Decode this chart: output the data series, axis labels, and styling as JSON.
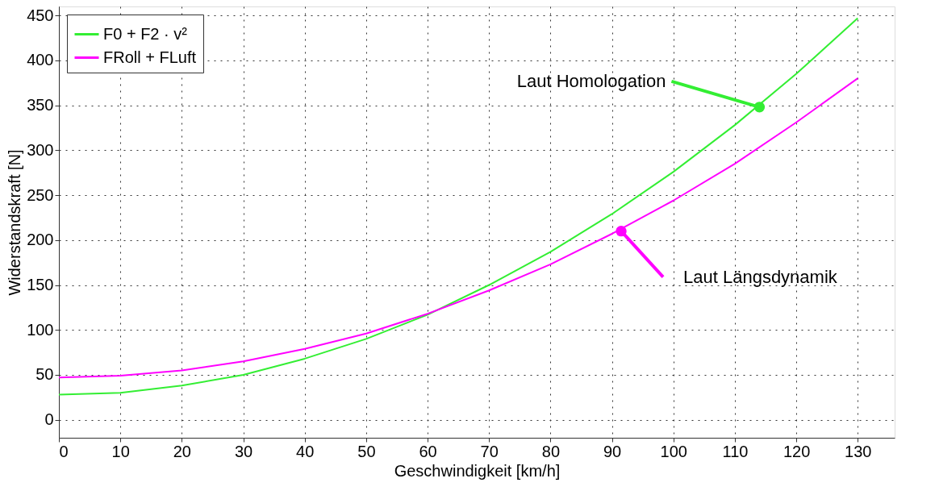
{
  "chart_data": {
    "type": "line",
    "xlabel": "Geschwindigkeit [km/h]",
    "ylabel": "Widerstandskraft [N]",
    "x": [
      0,
      10,
      20,
      30,
      40,
      50,
      60,
      70,
      80,
      90,
      100,
      110,
      120,
      130
    ],
    "series": [
      {
        "name": "F0 + F2 · v²",
        "color": "#33ee33",
        "values": [
          28,
          30,
          38,
          50,
          68,
          90,
          117,
          150,
          187,
          229,
          276,
          328,
          385,
          447
        ]
      },
      {
        "name": "FRoll + FLuft",
        "color": "#ff00ff",
        "values": [
          47,
          49,
          55,
          65,
          79,
          96,
          118,
          144,
          173,
          207,
          244,
          285,
          331,
          380
        ]
      }
    ],
    "annotations": [
      {
        "text": "Laut Homologation",
        "x": 114,
        "y": 348
      },
      {
        "text": "Laut Längsdynamik",
        "x": 91.5,
        "y": 210
      }
    ],
    "xlim": [
      0,
      136
    ],
    "xticks": [
      0,
      10,
      20,
      30,
      40,
      50,
      60,
      70,
      80,
      90,
      100,
      110,
      120,
      130
    ],
    "ylim": [
      -20,
      460
    ],
    "yticks": [
      0,
      50,
      100,
      150,
      200,
      250,
      300,
      350,
      400,
      450
    ],
    "grid": true,
    "legend": "top left",
    "marker": "none",
    "line_style": "solid"
  }
}
